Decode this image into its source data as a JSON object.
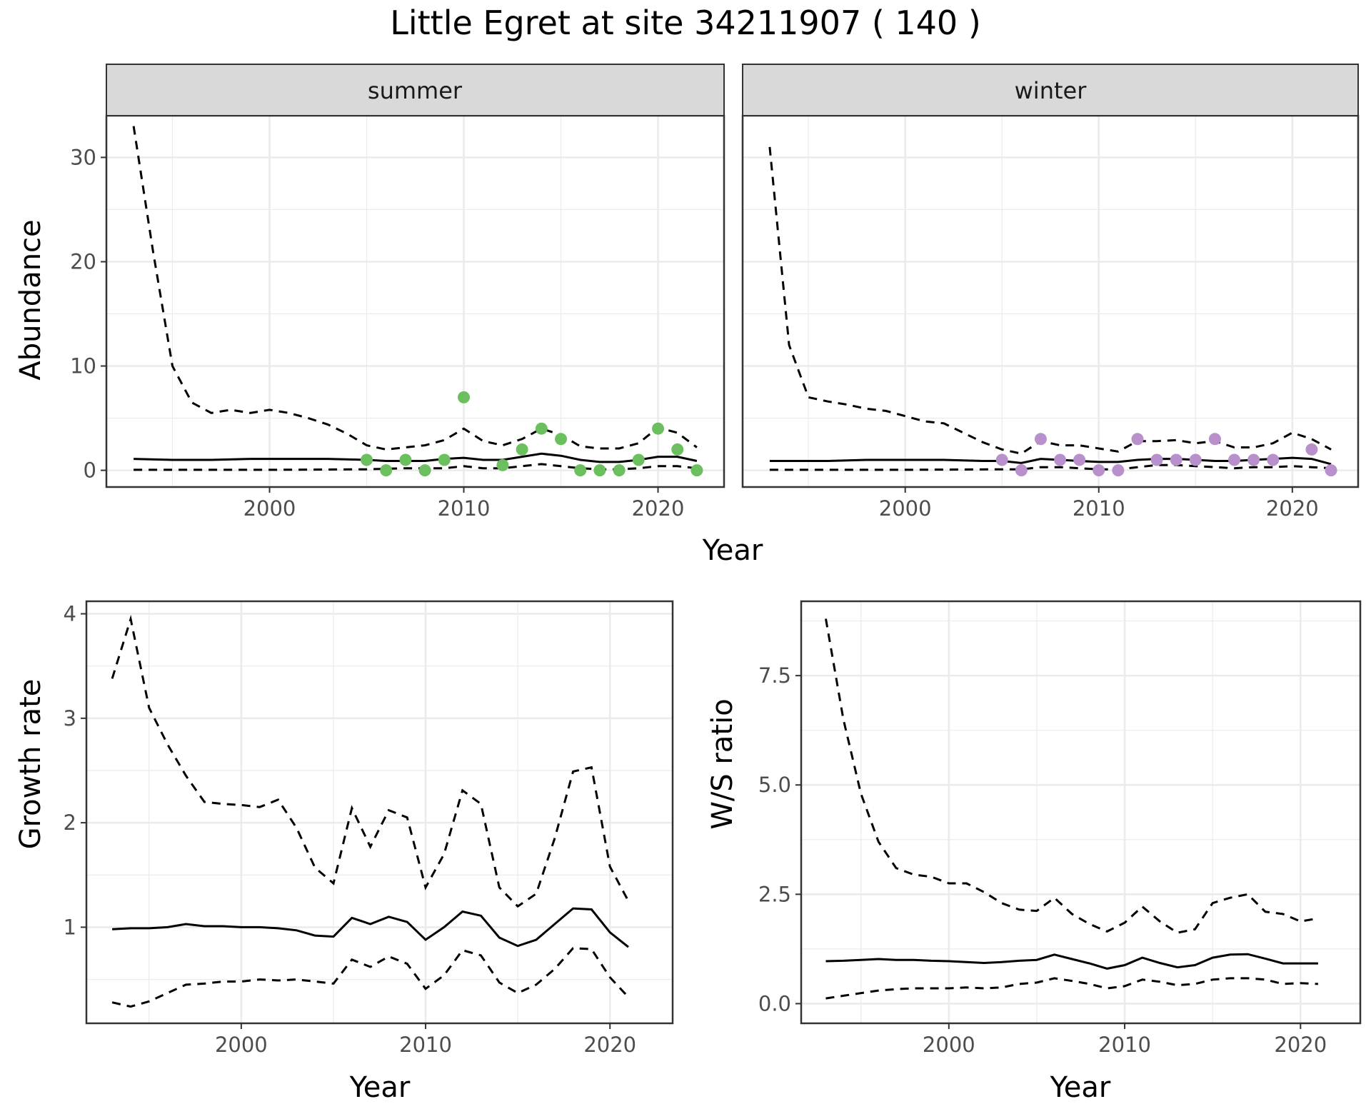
{
  "title": "Little Egret at site 34211907 ( 140 )",
  "colors": {
    "summer_points": "#6cbf5e",
    "winter_points": "#b890cc",
    "strip_bg": "#d9d9d9"
  },
  "chart_data": [
    {
      "type": "line",
      "facet": "summer",
      "xlabel": "Year",
      "ylabel": "Abundance",
      "xlim": [
        1991.6,
        2023.4
      ],
      "ylim": [
        -1.6,
        34.0
      ],
      "xticks": [
        2000,
        2010,
        2020
      ],
      "yticks": [
        0,
        10,
        20,
        30
      ],
      "grid": true,
      "mean": {
        "x": [
          1993,
          1995,
          1997,
          1999,
          2001,
          2003,
          2005,
          2006,
          2007,
          2008,
          2009,
          2010,
          2011,
          2012,
          2013,
          2014,
          2015,
          2016,
          2017,
          2018,
          2019,
          2020,
          2021,
          2022
        ],
        "y": [
          1.1,
          1.0,
          1.0,
          1.1,
          1.1,
          1.1,
          1.0,
          0.9,
          0.9,
          0.9,
          1.1,
          1.2,
          1.0,
          1.0,
          1.3,
          1.6,
          1.4,
          1.0,
          0.8,
          0.8,
          1.0,
          1.3,
          1.3,
          0.9
        ]
      },
      "upper": {
        "x": [
          1993,
          1994,
          1995,
          1996,
          1997,
          1998,
          1999,
          2000,
          2001,
          2002,
          2003,
          2004,
          2005,
          2006,
          2007,
          2008,
          2009,
          2010,
          2011,
          2012,
          2013,
          2014,
          2015,
          2016,
          2017,
          2018,
          2019,
          2020,
          2021,
          2022
        ],
        "y": [
          33,
          21,
          10,
          6.5,
          5.5,
          5.8,
          5.5,
          5.8,
          5.5,
          5.0,
          4.4,
          3.5,
          2.4,
          2.0,
          2.2,
          2.4,
          2.9,
          4.0,
          2.8,
          2.4,
          3.0,
          4.0,
          3.4,
          2.3,
          2.1,
          2.1,
          2.6,
          4.1,
          3.6,
          2.2
        ]
      },
      "lower": {
        "x": [
          1993,
          2000,
          2005,
          2007,
          2008,
          2009,
          2010,
          2011,
          2012,
          2013,
          2014,
          2015,
          2016,
          2017,
          2018,
          2019,
          2020,
          2021,
          2022
        ],
        "y": [
          0.05,
          0.05,
          0.1,
          0.2,
          0.2,
          0.2,
          0.4,
          0.2,
          0.2,
          0.4,
          0.6,
          0.4,
          0.2,
          0.1,
          0.1,
          0.2,
          0.4,
          0.4,
          0.2
        ]
      },
      "points": {
        "x": [
          2005,
          2006,
          2007,
          2008,
          2009,
          2010,
          2012,
          2013,
          2014,
          2015,
          2016,
          2017,
          2018,
          2019,
          2020,
          2021,
          2022
        ],
        "y": [
          1,
          0,
          1,
          0,
          1,
          7,
          0.5,
          2,
          4,
          3,
          0,
          0,
          0,
          1,
          4,
          2,
          0
        ]
      }
    },
    {
      "type": "line",
      "facet": "winter",
      "xlabel": "Year",
      "ylabel": "Abundance",
      "xlim": [
        1991.6,
        2023.4
      ],
      "ylim": [
        -1.6,
        34.0
      ],
      "xticks": [
        2000,
        2010,
        2020
      ],
      "yticks": [
        0,
        10,
        20,
        30
      ],
      "grid": true,
      "mean": {
        "x": [
          1993,
          1996,
          1998,
          2000,
          2002,
          2004,
          2005,
          2006,
          2007,
          2008,
          2009,
          2010,
          2011,
          2012,
          2013,
          2014,
          2015,
          2016,
          2017,
          2018,
          2019,
          2020,
          2021,
          2022
        ],
        "y": [
          0.9,
          0.9,
          1.0,
          1.0,
          1.0,
          0.9,
          0.9,
          0.7,
          1.1,
          1.0,
          0.9,
          0.8,
          0.8,
          1.0,
          1.1,
          1.1,
          1.0,
          0.9,
          0.9,
          1.0,
          1.1,
          1.2,
          1.1,
          0.6
        ]
      },
      "upper": {
        "x": [
          1993,
          1994,
          1995,
          1996,
          1997,
          1998,
          1999,
          2000,
          2001,
          2002,
          2003,
          2004,
          2005,
          2006,
          2007,
          2008,
          2009,
          2010,
          2011,
          2012,
          2013,
          2014,
          2015,
          2016,
          2017,
          2018,
          2019,
          2020,
          2021,
          2022
        ],
        "y": [
          31,
          12,
          7,
          6.6,
          6.3,
          5.9,
          5.7,
          5.2,
          4.7,
          4.5,
          3.6,
          2.7,
          2.0,
          1.6,
          2.8,
          2.4,
          2.4,
          2.1,
          1.8,
          2.8,
          2.8,
          2.9,
          2.6,
          2.8,
          2.2,
          2.2,
          2.6,
          3.6,
          3.0,
          2.0
        ]
      },
      "lower": {
        "x": [
          1993,
          2000,
          2005,
          2006,
          2007,
          2008,
          2009,
          2010,
          2011,
          2012,
          2013,
          2014,
          2015,
          2016,
          2017,
          2018,
          2019,
          2020,
          2021,
          2022
        ],
        "y": [
          0.05,
          0.05,
          0.1,
          0.1,
          0.3,
          0.3,
          0.2,
          0.1,
          0.1,
          0.3,
          0.5,
          0.5,
          0.4,
          0.3,
          0.2,
          0.3,
          0.3,
          0.4,
          0.3,
          0.2
        ]
      },
      "points": {
        "x": [
          2005,
          2006,
          2007,
          2008,
          2009,
          2010,
          2011,
          2012,
          2013,
          2014,
          2015,
          2016,
          2017,
          2018,
          2019,
          2021,
          2022
        ],
        "y": [
          1,
          0,
          3,
          1,
          1,
          0,
          0,
          3,
          1,
          1,
          1,
          3,
          1,
          1,
          1,
          2,
          0
        ]
      }
    },
    {
      "type": "line",
      "xlabel": "Year",
      "ylabel": "Growth rate",
      "xlim": [
        1991.6,
        2023.4
      ],
      "ylim": [
        0.08,
        4.12
      ],
      "xticks": [
        2000,
        2010,
        2020
      ],
      "yticks": [
        1,
        2,
        3,
        4
      ],
      "grid": true,
      "mean": {
        "x": [
          1993,
          1994,
          1995,
          1996,
          1997,
          1998,
          1999,
          2000,
          2001,
          2002,
          2003,
          2004,
          2005,
          2006,
          2007,
          2008,
          2009,
          2010,
          2011,
          2012,
          2013,
          2014,
          2015,
          2016,
          2017,
          2018,
          2019,
          2020,
          2021
        ],
        "y": [
          0.98,
          0.99,
          0.99,
          1.0,
          1.03,
          1.01,
          1.01,
          1.0,
          1.0,
          0.99,
          0.97,
          0.92,
          0.91,
          1.09,
          1.03,
          1.1,
          1.05,
          0.88,
          1.0,
          1.15,
          1.11,
          0.9,
          0.82,
          0.88,
          1.03,
          1.18,
          1.17,
          0.95,
          0.81
        ]
      },
      "upper": {
        "x": [
          1993,
          1994,
          1995,
          1996,
          1997,
          1998,
          1999,
          2000,
          2001,
          2002,
          2003,
          2004,
          2005,
          2006,
          2007,
          2008,
          2009,
          2010,
          2011,
          2012,
          2013,
          2014,
          2015,
          2016,
          2017,
          2018,
          2019,
          2020,
          2021
        ],
        "y": [
          3.38,
          3.95,
          3.1,
          2.75,
          2.45,
          2.2,
          2.18,
          2.17,
          2.15,
          2.22,
          1.95,
          1.57,
          1.42,
          2.14,
          1.77,
          2.12,
          2.05,
          1.38,
          1.7,
          2.31,
          2.18,
          1.38,
          1.2,
          1.32,
          1.85,
          2.49,
          2.53,
          1.58,
          1.25
        ]
      },
      "lower": {
        "x": [
          1993,
          1994,
          1995,
          1996,
          1997,
          1998,
          1999,
          2000,
          2001,
          2002,
          2003,
          2004,
          2005,
          2006,
          2007,
          2008,
          2009,
          2010,
          2011,
          2012,
          2013,
          2014,
          2015,
          2016,
          2017,
          2018,
          2019,
          2020,
          2021
        ],
        "y": [
          0.28,
          0.24,
          0.29,
          0.37,
          0.45,
          0.46,
          0.48,
          0.48,
          0.5,
          0.49,
          0.5,
          0.48,
          0.46,
          0.69,
          0.62,
          0.72,
          0.65,
          0.41,
          0.54,
          0.78,
          0.73,
          0.47,
          0.37,
          0.45,
          0.6,
          0.8,
          0.79,
          0.52,
          0.33
        ]
      }
    },
    {
      "type": "line",
      "xlabel": "Year",
      "ylabel": "W/S ratio",
      "xlim": [
        1991.6,
        2023.4
      ],
      "ylim": [
        -0.45,
        9.2
      ],
      "xticks": [
        2000,
        2010,
        2020
      ],
      "yticks": [
        0.0,
        2.5,
        5.0,
        7.5
      ],
      "ytick_labels": [
        "0.0",
        "2.5",
        "5.0",
        "7.5"
      ],
      "grid": true,
      "mean": {
        "x": [
          1993,
          1994,
          1995,
          1996,
          1997,
          1998,
          1999,
          2000,
          2001,
          2002,
          2003,
          2004,
          2005,
          2006,
          2007,
          2008,
          2009,
          2010,
          2011,
          2012,
          2013,
          2014,
          2015,
          2016,
          2017,
          2018,
          2019,
          2020,
          2021
        ],
        "y": [
          0.97,
          0.98,
          1.0,
          1.02,
          1.0,
          1.0,
          0.98,
          0.97,
          0.95,
          0.93,
          0.95,
          0.98,
          1.0,
          1.12,
          1.02,
          0.92,
          0.8,
          0.88,
          1.05,
          0.93,
          0.83,
          0.88,
          1.05,
          1.12,
          1.13,
          1.03,
          0.92,
          0.92,
          0.92
        ]
      },
      "upper": {
        "x": [
          1993,
          1994,
          1995,
          1996,
          1997,
          1998,
          1999,
          2000,
          2001,
          2002,
          2003,
          2004,
          2005,
          2006,
          2007,
          2008,
          2009,
          2010,
          2011,
          2012,
          2013,
          2014,
          2015,
          2016,
          2017,
          2018,
          2019,
          2020,
          2021
        ],
        "y": [
          8.8,
          6.5,
          4.8,
          3.7,
          3.1,
          2.95,
          2.9,
          2.75,
          2.75,
          2.55,
          2.3,
          2.15,
          2.12,
          2.42,
          2.05,
          1.82,
          1.65,
          1.85,
          2.22,
          1.88,
          1.62,
          1.7,
          2.3,
          2.42,
          2.5,
          2.1,
          2.05,
          1.88,
          1.95
        ]
      },
      "lower": {
        "x": [
          1993,
          1994,
          1995,
          1996,
          1997,
          1998,
          1999,
          2000,
          2001,
          2002,
          2003,
          2004,
          2005,
          2006,
          2007,
          2008,
          2009,
          2010,
          2011,
          2012,
          2013,
          2014,
          2015,
          2016,
          2017,
          2018,
          2019,
          2020,
          2021
        ],
        "y": [
          0.12,
          0.18,
          0.24,
          0.3,
          0.33,
          0.35,
          0.35,
          0.35,
          0.37,
          0.35,
          0.37,
          0.45,
          0.48,
          0.58,
          0.52,
          0.45,
          0.35,
          0.4,
          0.55,
          0.5,
          0.42,
          0.45,
          0.55,
          0.58,
          0.58,
          0.55,
          0.45,
          0.47,
          0.45
        ]
      }
    }
  ]
}
